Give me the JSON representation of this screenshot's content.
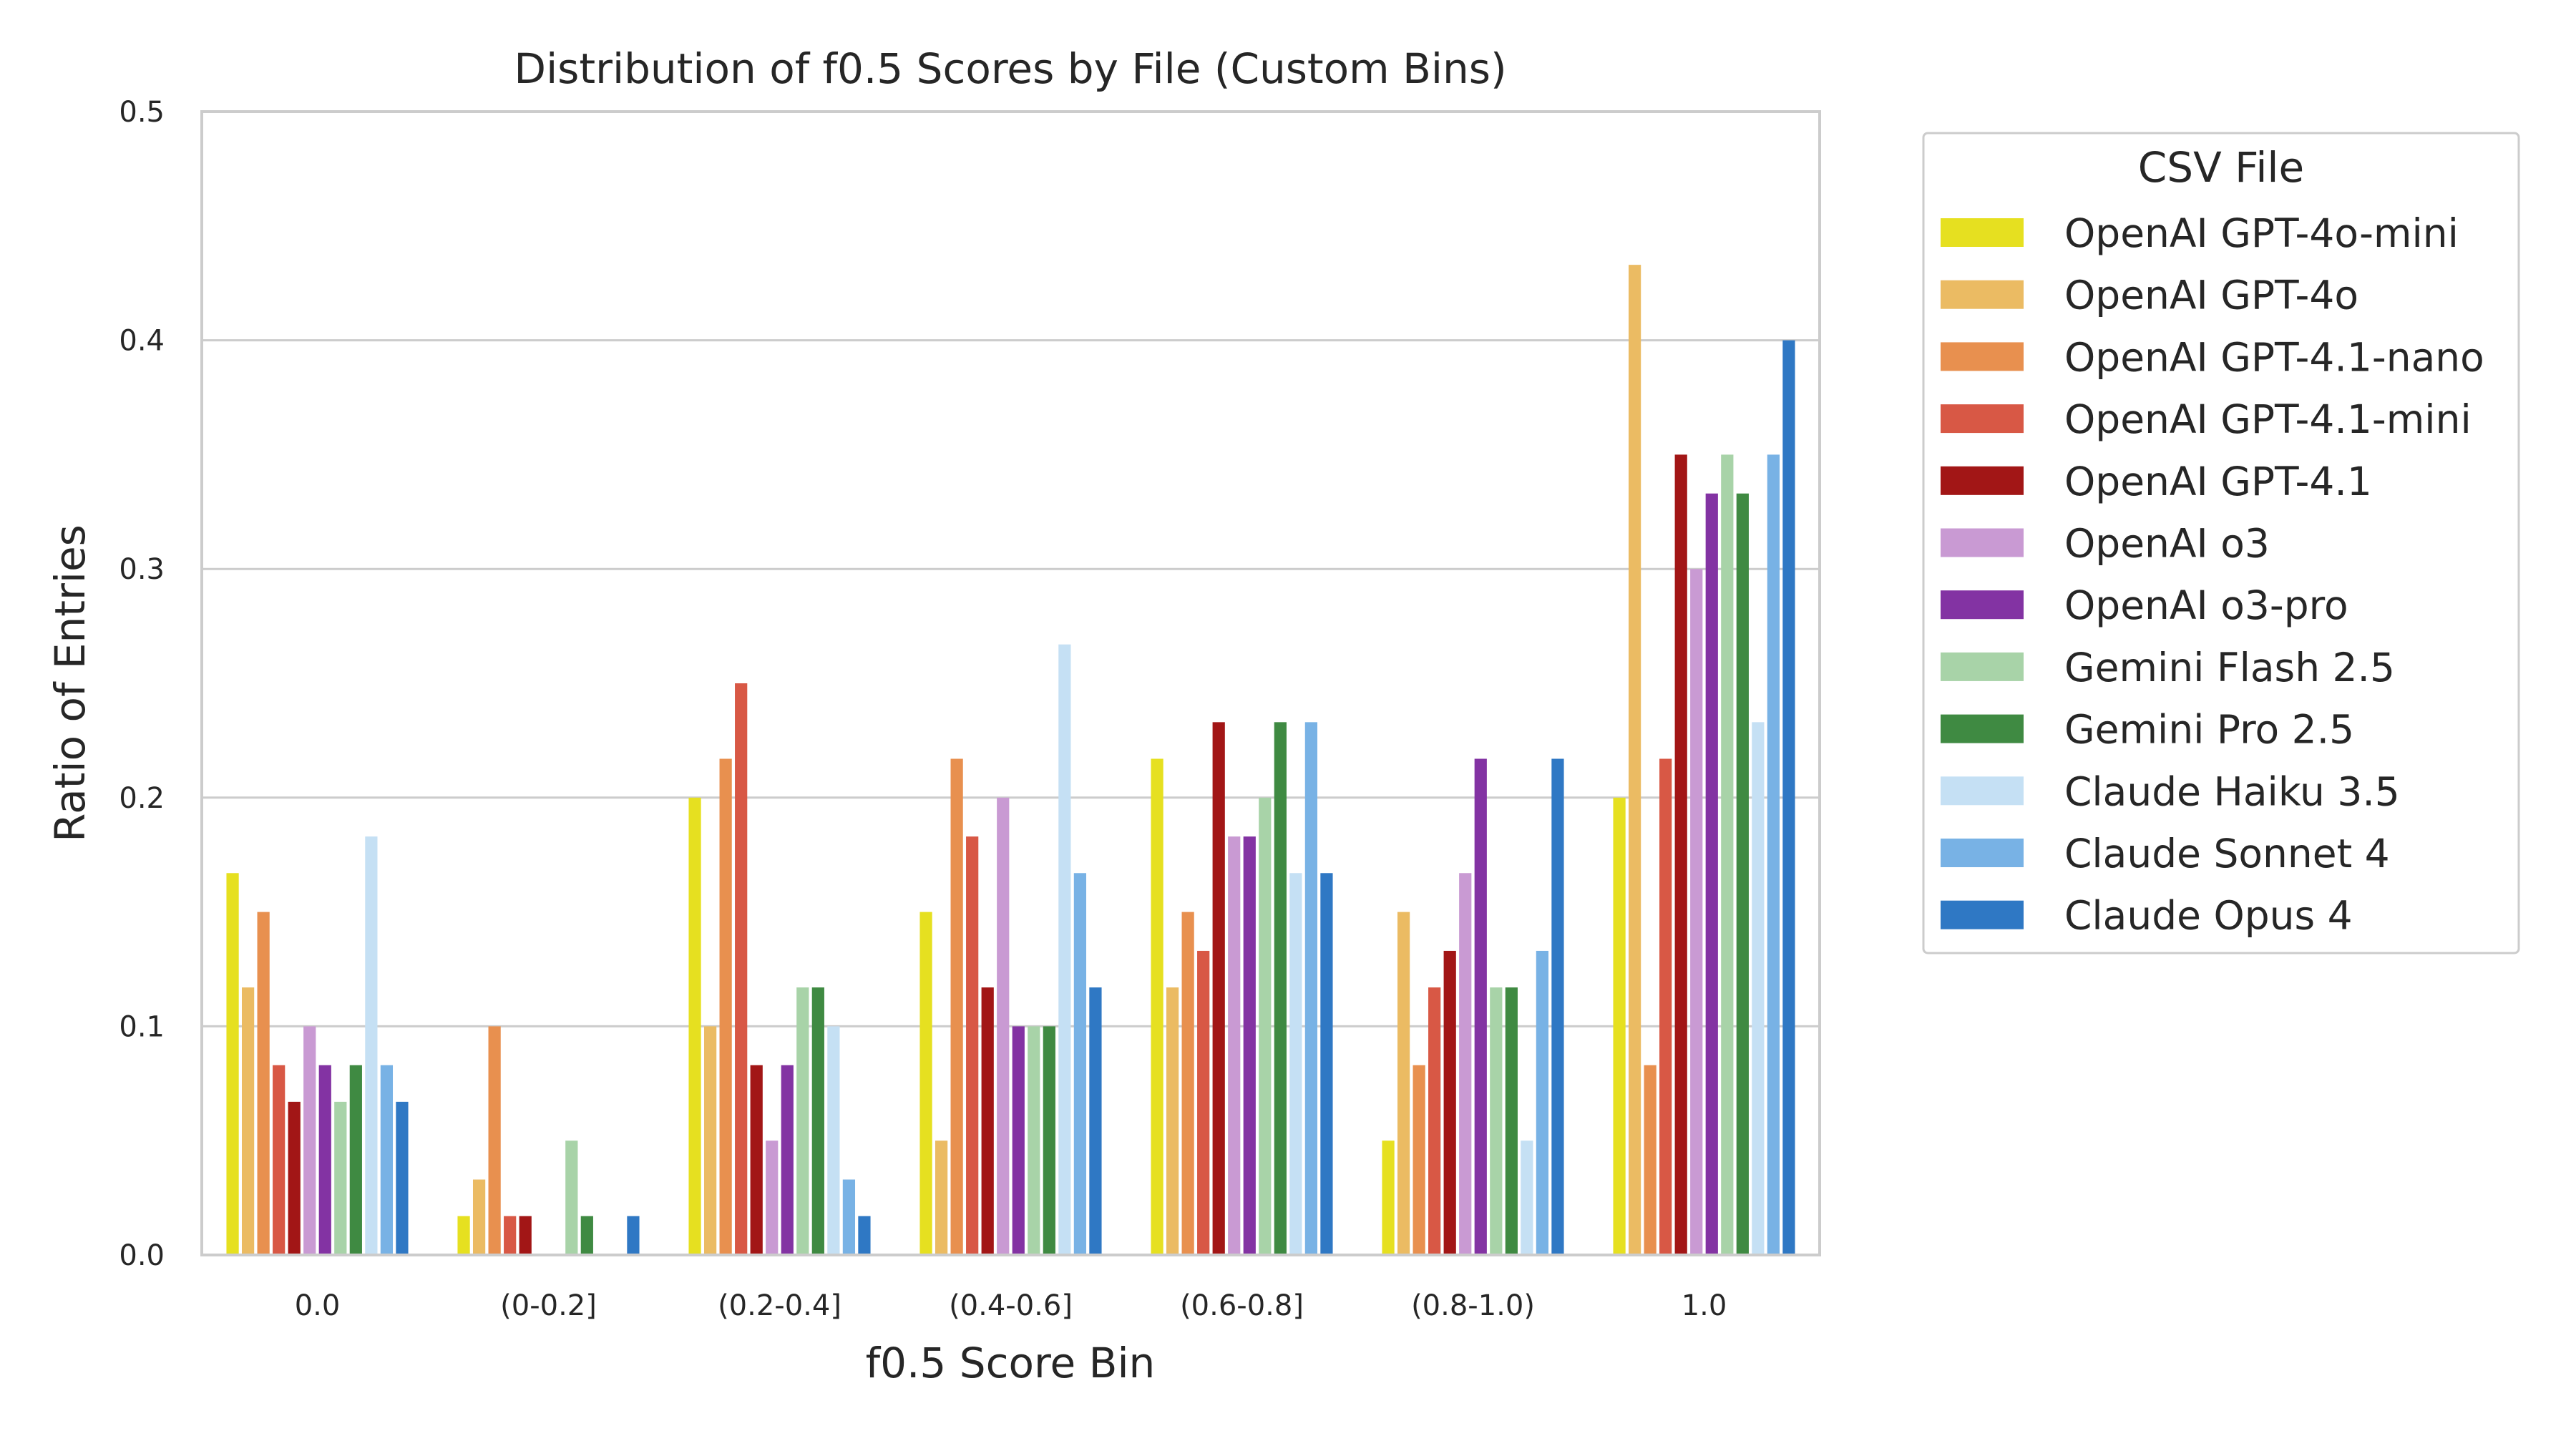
{
  "chart_data": {
    "type": "bar",
    "title": "Distribution of f0.5 Scores by File (Custom Bins)",
    "xlabel": "f0.5 Score Bin",
    "ylabel": "Ratio of Entries",
    "ylim": [
      0,
      0.5
    ],
    "yticks": [
      "0.0",
      "0.1",
      "0.2",
      "0.3",
      "0.4",
      "0.5"
    ],
    "grid": true,
    "legend_title": "CSV File",
    "legend_position": "outside-right",
    "categories": [
      "0.0",
      "(0-0.2]",
      "(0.2-0.4]",
      "(0.4-0.6]",
      "(0.6-0.8]",
      "(0.8-1.0)",
      "1.0"
    ],
    "series": [
      {
        "name": "OpenAI GPT-4o-mini",
        "color": "#e6e020",
        "values": [
          0.167,
          0.017,
          0.2,
          0.15,
          0.217,
          0.05,
          0.2
        ]
      },
      {
        "name": "OpenAI GPT-4o",
        "color": "#ebbb63",
        "values": [
          0.117,
          0.033,
          0.1,
          0.05,
          0.117,
          0.15,
          0.433
        ]
      },
      {
        "name": "OpenAI GPT-4.1-nano",
        "color": "#e8904f",
        "values": [
          0.15,
          0.1,
          0.217,
          0.217,
          0.15,
          0.083,
          0.083
        ]
      },
      {
        "name": "OpenAI GPT-4.1-mini",
        "color": "#d85845",
        "values": [
          0.083,
          0.017,
          0.25,
          0.183,
          0.133,
          0.117,
          0.217
        ]
      },
      {
        "name": "OpenAI GPT-4.1",
        "color": "#a21616",
        "values": [
          0.067,
          0.017,
          0.083,
          0.117,
          0.233,
          0.133,
          0.35
        ]
      },
      {
        "name": "OpenAI o3",
        "color": "#c99ad3",
        "values": [
          0.1,
          0,
          0.05,
          0.2,
          0.183,
          0.167,
          0.3
        ]
      },
      {
        "name": "OpenAI o3-pro",
        "color": "#8333a3",
        "values": [
          0.083,
          0,
          0.083,
          0.1,
          0.183,
          0.217,
          0.333
        ]
      },
      {
        "name": "Gemini Flash 2.5",
        "color": "#a8d3a8",
        "values": [
          0.067,
          0.05,
          0.117,
          0.1,
          0.2,
          0.117,
          0.35
        ]
      },
      {
        "name": "Gemini Pro 2.5",
        "color": "#3f8a42",
        "values": [
          0.083,
          0.017,
          0.117,
          0.1,
          0.233,
          0.117,
          0.333
        ]
      },
      {
        "name": "Claude Haiku 3.5",
        "color": "#c5e0f4",
        "values": [
          0.183,
          0,
          0.1,
          0.267,
          0.167,
          0.05,
          0.233
        ]
      },
      {
        "name": "Claude Sonnet 4",
        "color": "#78b2e5",
        "values": [
          0.083,
          0,
          0.033,
          0.167,
          0.233,
          0.133,
          0.35
        ]
      },
      {
        "name": "Claude Opus 4",
        "color": "#2f78c4",
        "values": [
          0.067,
          0.017,
          0.017,
          0.117,
          0.167,
          0.217,
          0.4
        ]
      }
    ]
  }
}
